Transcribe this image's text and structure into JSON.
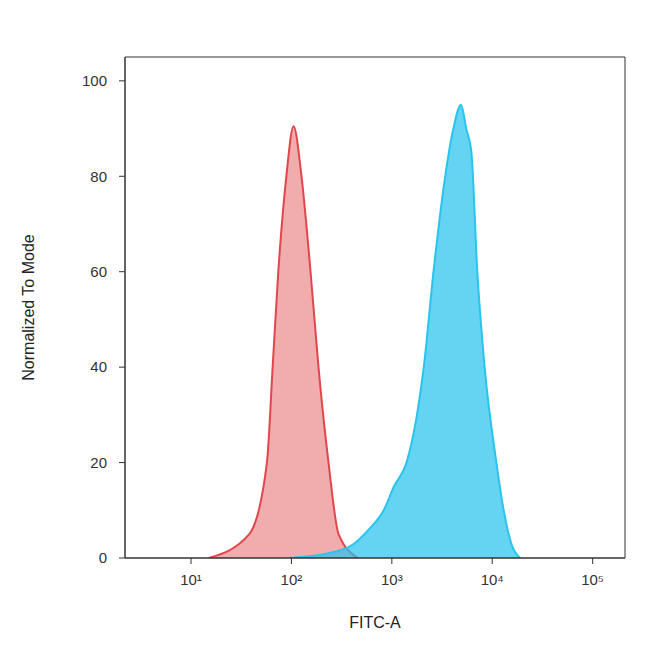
{
  "chart_data": {
    "type": "area",
    "xlabel": "FITC-A",
    "ylabel": "Normalized To Mode",
    "log": "x",
    "xlim": [
      2.2,
      210000
    ],
    "xticks": [
      {
        "value": 10,
        "label": "10¹"
      },
      {
        "value": 100,
        "label": "10²"
      },
      {
        "value": 1000,
        "label": "10³"
      },
      {
        "value": 10000,
        "label": "10⁴"
      },
      {
        "value": 100000,
        "label": "10⁵"
      }
    ],
    "ylim": [
      0,
      105
    ],
    "yticks": [
      0,
      20,
      40,
      60,
      80,
      100
    ],
    "grid": false,
    "series": [
      {
        "color": "#e0474c",
        "x": [
          15,
          38,
          57,
          65,
          74,
          89,
          105,
          126,
          155,
          186,
          234,
          295,
          460
        ],
        "values": [
          0,
          5,
          20,
          40,
          60,
          80,
          90.5,
          80,
          60,
          40,
          20,
          5,
          0
        ]
      },
      {
        "color": "#29c4ee",
        "x": [
          95,
          234,
          420,
          590,
          830,
          1050,
          1400,
          1780,
          2080,
          2600,
          3400,
          4100,
          4900,
          5500,
          6200,
          7100,
          8400,
          11000,
          13000,
          15500,
          19000
        ],
        "values": [
          0,
          1,
          3,
          6,
          10,
          15,
          20,
          30,
          40,
          60,
          80,
          90,
          95,
          90,
          85,
          60,
          40,
          20,
          10,
          3,
          0
        ]
      }
    ]
  }
}
